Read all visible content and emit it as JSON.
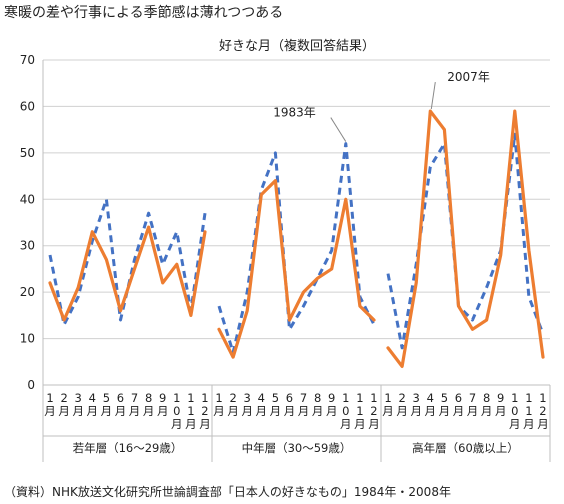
{
  "page": {
    "title": "寒暖の差や行事による季節感は薄れつつある",
    "source": "（資料）NHK放送文化研究所世論調査部「日本人の好きなもの」1984年・2008年"
  },
  "chart_data": {
    "type": "line",
    "title": "好きな月（複数回答結果）",
    "ylim": [
      0,
      70
    ],
    "yticks": [
      0,
      10,
      20,
      30,
      40,
      50,
      60,
      70
    ],
    "grid": true,
    "groups": [
      {
        "name": "若年層（16〜29歳）"
      },
      {
        "name": "中年層（30〜59歳）"
      },
      {
        "name": "高年層（60歳以上）"
      }
    ],
    "categories": [
      "1月",
      "2月",
      "3月",
      "4月",
      "5月",
      "6月",
      "7月",
      "8月",
      "9月",
      "10月",
      "11月",
      "12月"
    ],
    "tick_labels": [
      [
        "1",
        "月"
      ],
      [
        "2",
        "月"
      ],
      [
        "3",
        "月"
      ],
      [
        "4",
        "月"
      ],
      [
        "5",
        "月"
      ],
      [
        "6",
        "月"
      ],
      [
        "7",
        "月"
      ],
      [
        "8",
        "月"
      ],
      [
        "9",
        "月"
      ],
      [
        "1",
        "0",
        "月"
      ],
      [
        "1",
        "1",
        "月"
      ],
      [
        "1",
        "2",
        "月"
      ]
    ],
    "series": [
      {
        "name": "1983年",
        "color": "#4472C4",
        "dash": true,
        "values": [
          [
            28,
            13,
            19,
            31,
            40,
            14,
            27,
            37,
            26,
            33,
            16,
            37
          ],
          [
            17,
            7,
            20,
            42,
            50,
            12,
            17,
            23,
            29,
            52,
            19,
            13
          ],
          [
            24,
            8,
            26,
            47,
            52,
            17,
            14,
            21,
            29,
            54,
            19,
            11
          ]
        ]
      },
      {
        "name": "2007年",
        "color": "#ED7D31",
        "dash": false,
        "values": [
          [
            22,
            14,
            21,
            33,
            27,
            16,
            25,
            34,
            22,
            26,
            15,
            33
          ],
          [
            12,
            6,
            16,
            41,
            44,
            14,
            20,
            23,
            25,
            40,
            17,
            14
          ],
          [
            8,
            4,
            22,
            59,
            55,
            17,
            12,
            14,
            28,
            59,
            29,
            6
          ]
        ]
      }
    ],
    "annotations": [
      {
        "text": "1983年",
        "series": 0,
        "group": 1,
        "index": 9
      },
      {
        "text": "2007年",
        "series": 1,
        "group": 2,
        "index": 3
      }
    ]
  }
}
